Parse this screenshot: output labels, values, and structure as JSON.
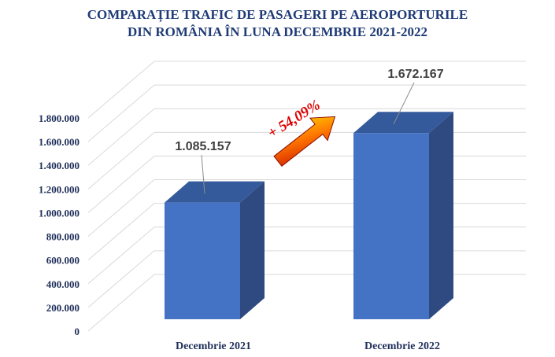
{
  "chart_data": {
    "type": "bar",
    "title_lines": [
      "COMPARAȚIE TRAFIC DE PASAGERI PE AEROPORTURILE",
      "DIN ROMÂNIA ÎN LUNA DECEMBRIE 2021-2022"
    ],
    "categories": [
      "Decembrie 2021",
      "Decembrie 2022"
    ],
    "values": [
      1085157,
      1672167
    ],
    "data_labels": [
      "1.085.157",
      "1.672.167"
    ],
    "ylim": [
      0,
      1800000
    ],
    "y_ticks": [
      0,
      200000,
      400000,
      600000,
      800000,
      1000000,
      1200000,
      1400000,
      1600000,
      1800000
    ],
    "y_tick_labels": [
      "0",
      "200.000",
      "400.000",
      "600.000",
      "800.000",
      "1.000.000",
      "1.200.000",
      "1.400.000",
      "1.600.000",
      "1.800.000"
    ],
    "annotation": "+ 54,09%",
    "grid": true,
    "legend": "none",
    "colors": {
      "bar_front": "#4472c4",
      "bar_side": "#2e4a80",
      "bar_top": "#355a9b",
      "arrow_start": "#e02000",
      "arrow_end": "#ffd000",
      "annotation": "#e00000",
      "title": "#1f3b76"
    }
  }
}
